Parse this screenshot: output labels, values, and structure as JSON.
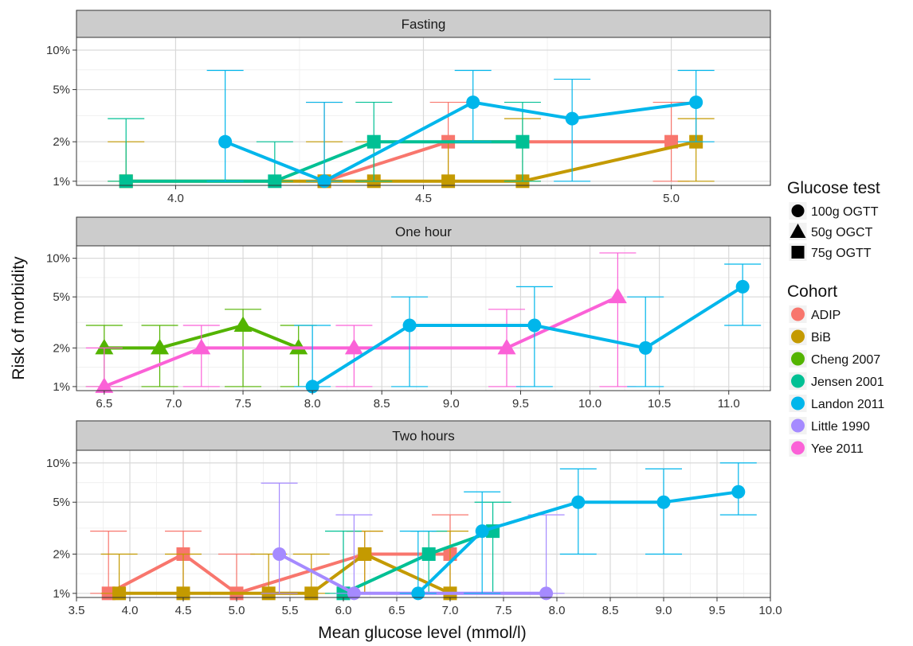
{
  "chart_data": {
    "type": "line",
    "xlabel": "Mean glucose level (mmol/l)",
    "ylabel": "Risk of morbidity",
    "y_scale": "log",
    "y_ticks": [
      1,
      2,
      5,
      10
    ],
    "y_tick_labels": [
      "1%",
      "2%",
      "5%",
      "10%"
    ],
    "grid": true,
    "legend_position": "right",
    "legend": {
      "shape_title": "Glucose test",
      "shapes": [
        {
          "label": "100g OGTT",
          "shape": "circle"
        },
        {
          "label": "50g OGCT",
          "shape": "triangle"
        },
        {
          "label": "75g OGTT",
          "shape": "square"
        }
      ],
      "color_title": "Cohort",
      "cohorts": [
        {
          "label": "ADIP",
          "color": "#F8766D"
        },
        {
          "label": "BiB",
          "color": "#C49A00"
        },
        {
          "label": "Cheng 2007",
          "color": "#53B400"
        },
        {
          "label": "Jensen 2001",
          "color": "#00C094"
        },
        {
          "label": "Landon 2011",
          "color": "#00B6EB"
        },
        {
          "label": "Little 1990",
          "color": "#A58AFF"
        },
        {
          "label": "Yee 2011",
          "color": "#FB61D7"
        }
      ]
    },
    "panels": [
      {
        "title": "Fasting",
        "xlim": [
          3.8,
          5.2
        ],
        "x_ticks": [
          4.0,
          4.5,
          5.0
        ],
        "x_tick_labels": [
          "4.0",
          "4.5",
          "5.0"
        ],
        "series": [
          {
            "cohort": "ADIP",
            "test": "75g OGTT",
            "points": [
              {
                "x": 4.3,
                "y": 1,
                "lo": 1,
                "hi": 4
              },
              {
                "x": 4.55,
                "y": 2,
                "lo": 1,
                "hi": 4
              },
              {
                "x": 5.0,
                "y": 2,
                "lo": 1,
                "hi": 4
              }
            ]
          },
          {
            "cohort": "BiB",
            "test": "75g OGTT",
            "points": [
              {
                "x": 3.9,
                "y": 1,
                "lo": 1,
                "hi": 2
              },
              {
                "x": 4.3,
                "y": 1,
                "lo": 1,
                "hi": 2
              },
              {
                "x": 4.4,
                "y": 1,
                "lo": 1,
                "hi": 2
              },
              {
                "x": 4.55,
                "y": 1,
                "lo": 1,
                "hi": 2
              },
              {
                "x": 4.7,
                "y": 1,
                "lo": 1,
                "hi": 3
              },
              {
                "x": 5.05,
                "y": 2,
                "lo": 1,
                "hi": 3
              }
            ]
          },
          {
            "cohort": "Jensen 2001",
            "test": "75g OGTT",
            "points": [
              {
                "x": 3.9,
                "y": 1,
                "lo": 1,
                "hi": 3
              },
              {
                "x": 4.2,
                "y": 1,
                "lo": 1,
                "hi": 2
              },
              {
                "x": 4.4,
                "y": 2,
                "lo": 1,
                "hi": 4
              },
              {
                "x": 4.7,
                "y": 2,
                "lo": 1,
                "hi": 4
              }
            ]
          },
          {
            "cohort": "Landon 2011",
            "test": "100g OGTT",
            "points": [
              {
                "x": 4.1,
                "y": 2,
                "lo": 1,
                "hi": 7
              },
              {
                "x": 4.3,
                "y": 1,
                "lo": 1,
                "hi": 4
              },
              {
                "x": 4.6,
                "y": 4,
                "lo": 2,
                "hi": 7
              },
              {
                "x": 4.8,
                "y": 3,
                "lo": 1,
                "hi": 6
              },
              {
                "x": 5.05,
                "y": 4,
                "lo": 2,
                "hi": 7
              }
            ]
          }
        ]
      },
      {
        "title": "One hour",
        "xlim": [
          6.3,
          11.3
        ],
        "x_ticks": [
          6.5,
          7.0,
          7.5,
          8.0,
          8.5,
          9.0,
          9.5,
          10.0,
          10.5,
          11.0
        ],
        "x_tick_labels": [
          "6.5",
          "7.0",
          "7.5",
          "8.0",
          "8.5",
          "9.0",
          "9.5",
          "10.0",
          "10.5",
          "11.0"
        ],
        "series": [
          {
            "cohort": "Cheng 2007",
            "test": "50g OGCT",
            "points": [
              {
                "x": 6.5,
                "y": 2,
                "lo": 1,
                "hi": 3
              },
              {
                "x": 6.9,
                "y": 2,
                "lo": 1,
                "hi": 3
              },
              {
                "x": 7.5,
                "y": 3,
                "lo": 1,
                "hi": 4
              },
              {
                "x": 7.9,
                "y": 2,
                "lo": 1,
                "hi": 3
              }
            ]
          },
          {
            "cohort": "Yee 2011",
            "test": "50g OGCT",
            "points": [
              {
                "x": 6.5,
                "y": 1,
                "lo": 1,
                "hi": 2
              },
              {
                "x": 7.2,
                "y": 2,
                "lo": 1,
                "hi": 3
              },
              {
                "x": 8.3,
                "y": 2,
                "lo": 1,
                "hi": 3
              },
              {
                "x": 9.4,
                "y": 2,
                "lo": 1,
                "hi": 4
              },
              {
                "x": 10.2,
                "y": 5,
                "lo": 1,
                "hi": 11
              }
            ]
          },
          {
            "cohort": "Landon 2011",
            "test": "100g OGTT",
            "points": [
              {
                "x": 8.0,
                "y": 1,
                "lo": 1,
                "hi": 3
              },
              {
                "x": 8.7,
                "y": 3,
                "lo": 1,
                "hi": 5
              },
              {
                "x": 9.6,
                "y": 3,
                "lo": 1,
                "hi": 6
              },
              {
                "x": 10.4,
                "y": 2,
                "lo": 1,
                "hi": 5
              },
              {
                "x": 11.1,
                "y": 6,
                "lo": 3,
                "hi": 9
              }
            ]
          }
        ]
      },
      {
        "title": "Two hours",
        "xlim": [
          3.5,
          10.0
        ],
        "x_ticks": [
          3.5,
          4.0,
          4.5,
          5.0,
          5.5,
          6.0,
          6.5,
          7.0,
          7.5,
          8.0,
          8.5,
          9.0,
          9.5,
          10.0
        ],
        "x_tick_labels": [
          "3.5",
          "4.0",
          "4.5",
          "5.0",
          "5.5",
          "6.0",
          "6.5",
          "7.0",
          "7.5",
          "8.0",
          "8.5",
          "9.0",
          "9.5",
          "10.0"
        ],
        "series": [
          {
            "cohort": "ADIP",
            "test": "75g OGTT",
            "points": [
              {
                "x": 3.8,
                "y": 1,
                "lo": 1,
                "hi": 3
              },
              {
                "x": 4.5,
                "y": 2,
                "lo": 1,
                "hi": 3
              },
              {
                "x": 5.0,
                "y": 1,
                "lo": 1,
                "hi": 2
              },
              {
                "x": 6.2,
                "y": 2,
                "lo": 1,
                "hi": 3
              },
              {
                "x": 7.0,
                "y": 2,
                "lo": 1,
                "hi": 4
              }
            ]
          },
          {
            "cohort": "BiB",
            "test": "75g OGTT",
            "points": [
              {
                "x": 3.9,
                "y": 1,
                "lo": 1,
                "hi": 2
              },
              {
                "x": 4.5,
                "y": 1,
                "lo": 1,
                "hi": 2
              },
              {
                "x": 5.3,
                "y": 1,
                "lo": 1,
                "hi": 2
              },
              {
                "x": 5.7,
                "y": 1,
                "lo": 1,
                "hi": 2
              },
              {
                "x": 6.2,
                "y": 2,
                "lo": 1,
                "hi": 3
              },
              {
                "x": 7.0,
                "y": 1,
                "lo": 1,
                "hi": 3
              }
            ]
          },
          {
            "cohort": "Jensen 2001",
            "test": "75g OGTT",
            "points": [
              {
                "x": 6.0,
                "y": 1,
                "lo": 1,
                "hi": 3
              },
              {
                "x": 6.8,
                "y": 2,
                "lo": 1,
                "hi": 3
              },
              {
                "x": 7.4,
                "y": 3,
                "lo": 1,
                "hi": 5
              }
            ]
          },
          {
            "cohort": "Little 1990",
            "test": "100g OGTT",
            "points": [
              {
                "x": 5.4,
                "y": 2,
                "lo": 1,
                "hi": 7
              },
              {
                "x": 6.1,
                "y": 1,
                "lo": 1,
                "hi": 4
              },
              {
                "x": 7.9,
                "y": 1,
                "lo": 1,
                "hi": 4
              }
            ]
          },
          {
            "cohort": "Landon 2011",
            "test": "100g OGTT",
            "points": [
              {
                "x": 6.7,
                "y": 1,
                "lo": 1,
                "hi": 3
              },
              {
                "x": 7.3,
                "y": 3,
                "lo": 1,
                "hi": 6
              },
              {
                "x": 8.2,
                "y": 5,
                "lo": 2,
                "hi": 9
              },
              {
                "x": 9.0,
                "y": 5,
                "lo": 2,
                "hi": 9
              },
              {
                "x": 9.7,
                "y": 6,
                "lo": 4,
                "hi": 10
              }
            ]
          }
        ]
      }
    ]
  }
}
